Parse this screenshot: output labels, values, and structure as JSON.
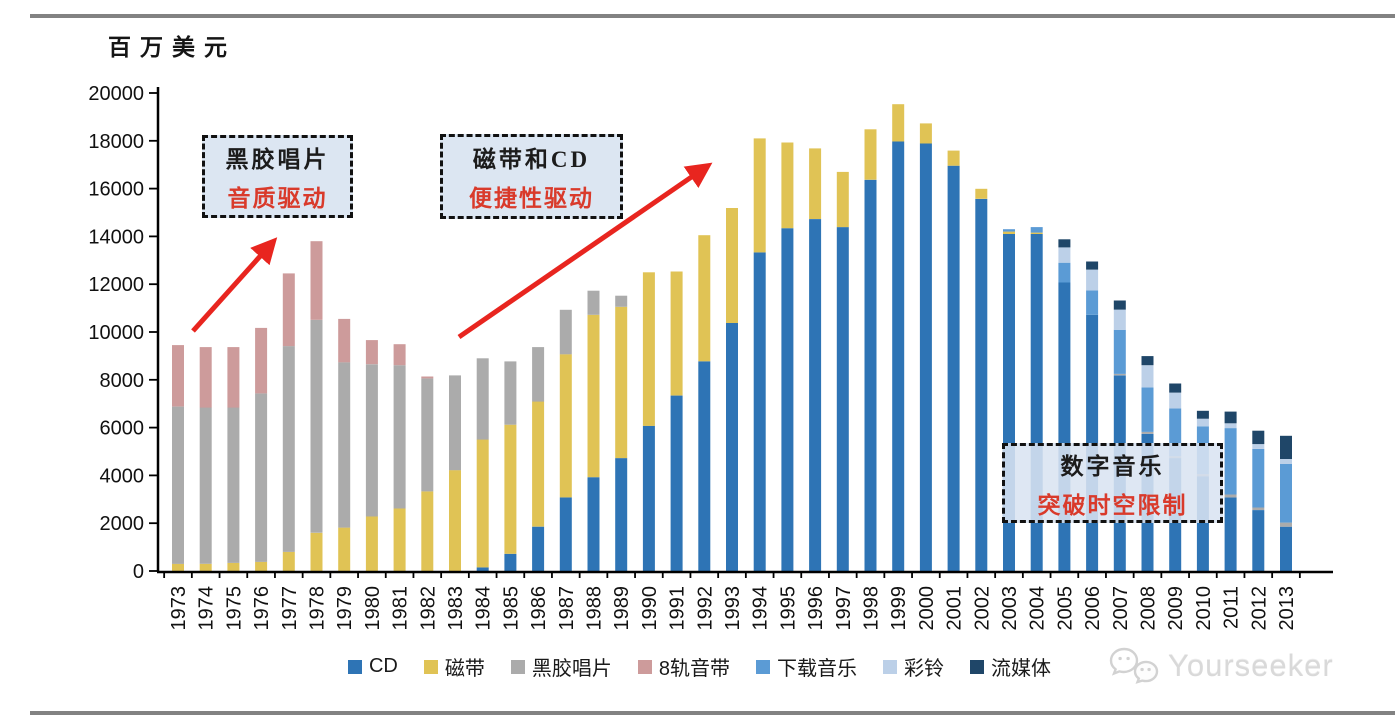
{
  "page": {
    "unit_label": "百万美元",
    "watermark_text": "Yourseeker"
  },
  "annotations": [
    {
      "line1": "黑胶唱片",
      "line2": "音质驱动"
    },
    {
      "line1": "磁带和CD",
      "line2": "便捷性驱动"
    },
    {
      "line1": "数字音乐",
      "line2": "突破时空限制"
    }
  ],
  "colors": {
    "arrow_red": "#E8251F",
    "callout_bg": "#DCE6F2",
    "callout_red_text": "#D93A2B",
    "rule_gray": "#828282",
    "watermark_gray": "#D9D9D9"
  },
  "chart_data": {
    "type": "bar",
    "stacked": true,
    "title": "",
    "xlabel": "",
    "ylabel": "百万美元",
    "ylim": [
      0,
      20000
    ],
    "yticks": [
      0,
      2000,
      4000,
      6000,
      8000,
      10000,
      12000,
      14000,
      16000,
      18000,
      20000
    ],
    "grid": false,
    "legend_position": "bottom",
    "categories": [
      1973,
      1974,
      1975,
      1976,
      1977,
      1978,
      1979,
      1980,
      1981,
      1982,
      1983,
      1984,
      1985,
      1986,
      1987,
      1988,
      1989,
      1990,
      1991,
      1992,
      1993,
      1994,
      1995,
      1996,
      1997,
      1998,
      1999,
      2000,
      2001,
      2002,
      2003,
      2004,
      2005,
      2006,
      2007,
      2008,
      2009,
      2010,
      2011,
      2012,
      2013
    ],
    "series": [
      {
        "name": "CD",
        "color": "#2E74B5",
        "values": [
          0,
          0,
          0,
          0,
          0,
          0,
          0,
          0,
          0,
          0,
          0,
          150,
          720,
          1855,
          3080,
          3925,
          4725,
          6075,
          7340,
          8775,
          10380,
          13330,
          14345,
          14725,
          14390,
          16370,
          17970,
          17890,
          16960,
          15570,
          14100,
          14100,
          12070,
          10720,
          8185,
          5740,
          4725,
          3965,
          3080,
          2550,
          1855
        ]
      },
      {
        "name": "磁带",
        "color": "#E0C355",
        "values": [
          300,
          300,
          340,
          380,
          800,
          1600,
          1815,
          2280,
          2615,
          3330,
          4220,
          5350,
          5400,
          5235,
          5990,
          6795,
          6330,
          6425,
          5190,
          5275,
          4810,
          4770,
          3585,
          2955,
          2310,
          2110,
          1560,
          840,
          630,
          420,
          100,
          60,
          0,
          0,
          0,
          0,
          0,
          0,
          0,
          0,
          0
        ]
      },
      {
        "name": "黑胶唱片",
        "color": "#ABABAB",
        "values": [
          6580,
          6540,
          6500,
          7050,
          8610,
          8910,
          6920,
          6370,
          5995,
          4730,
          3965,
          3400,
          2650,
          2280,
          1860,
          1010,
          465,
          0,
          0,
          0,
          0,
          0,
          0,
          0,
          0,
          0,
          0,
          0,
          0,
          0,
          0,
          0,
          0,
          0,
          60,
          80,
          80,
          90,
          120,
          110,
          170
        ]
      },
      {
        "name": "8轨音带",
        "color": "#CD9B9B",
        "values": [
          2570,
          2530,
          2530,
          2740,
          3040,
          3290,
          1815,
          1010,
          880,
          80,
          0,
          0,
          0,
          0,
          0,
          0,
          0,
          0,
          0,
          0,
          0,
          0,
          0,
          0,
          0,
          0,
          0,
          0,
          0,
          0,
          0,
          0,
          0,
          0,
          0,
          0,
          0,
          0,
          0,
          0,
          0
        ]
      },
      {
        "name": "下载音乐",
        "color": "#5B9BD5",
        "values": [
          0,
          0,
          0,
          0,
          0,
          0,
          0,
          0,
          0,
          0,
          0,
          0,
          0,
          0,
          0,
          0,
          0,
          0,
          0,
          0,
          0,
          0,
          0,
          0,
          0,
          0,
          0,
          0,
          0,
          0,
          100,
          230,
          830,
          1020,
          1845,
          1860,
          2000,
          2000,
          2780,
          2450,
          2450
        ]
      },
      {
        "name": "彩铃",
        "color": "#BCD0E8",
        "values": [
          0,
          0,
          0,
          0,
          0,
          0,
          0,
          0,
          0,
          0,
          0,
          0,
          0,
          0,
          0,
          0,
          0,
          0,
          0,
          0,
          0,
          0,
          0,
          0,
          0,
          0,
          0,
          0,
          0,
          0,
          0,
          0,
          640,
          870,
          850,
          930,
          660,
          320,
          200,
          200,
          210
        ]
      },
      {
        "name": "流媒体",
        "color": "#1F4668",
        "values": [
          0,
          0,
          0,
          0,
          0,
          0,
          0,
          0,
          0,
          0,
          0,
          0,
          0,
          0,
          0,
          0,
          0,
          0,
          0,
          0,
          0,
          0,
          0,
          0,
          0,
          0,
          0,
          0,
          0,
          0,
          0,
          0,
          340,
          340,
          380,
          380,
          380,
          330,
          490,
          560,
          970
        ]
      }
    ]
  }
}
